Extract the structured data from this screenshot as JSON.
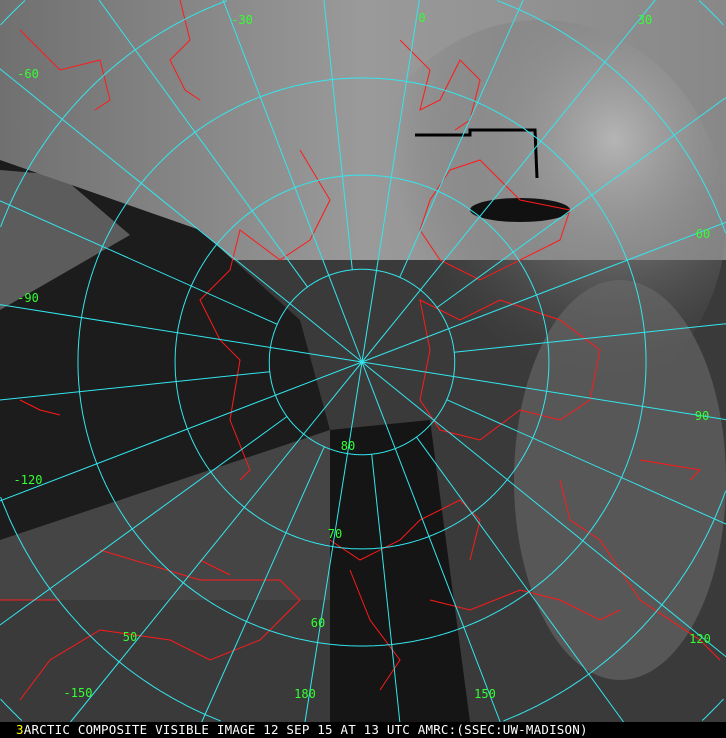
{
  "map": {
    "projection": "polar stereographic (north pole)",
    "grid_color": "#33e6ee",
    "coastline_color": "#ff1a1a",
    "label_color": "#33ff33",
    "longitude_labels": [
      "-30",
      "0",
      "30",
      "60",
      "90",
      "120",
      "150",
      "180",
      "-150",
      "-120",
      "-90",
      "-60"
    ],
    "longitude_values": [
      -30,
      0,
      30,
      60,
      90,
      120,
      150,
      180,
      -150,
      -120,
      -90,
      -60
    ],
    "latitude_labels": [
      "80",
      "70",
      "60",
      "50"
    ],
    "latitude_values": [
      80,
      70,
      60,
      50
    ]
  },
  "caption": {
    "frame_number": "3",
    "text": "ARCTIC COMPOSITE VISIBLE IMAGE 12 SEP 15 AT 13 UTC AMRC:(SSEC:UW-MADISON)",
    "number_color": "#ffff00"
  }
}
